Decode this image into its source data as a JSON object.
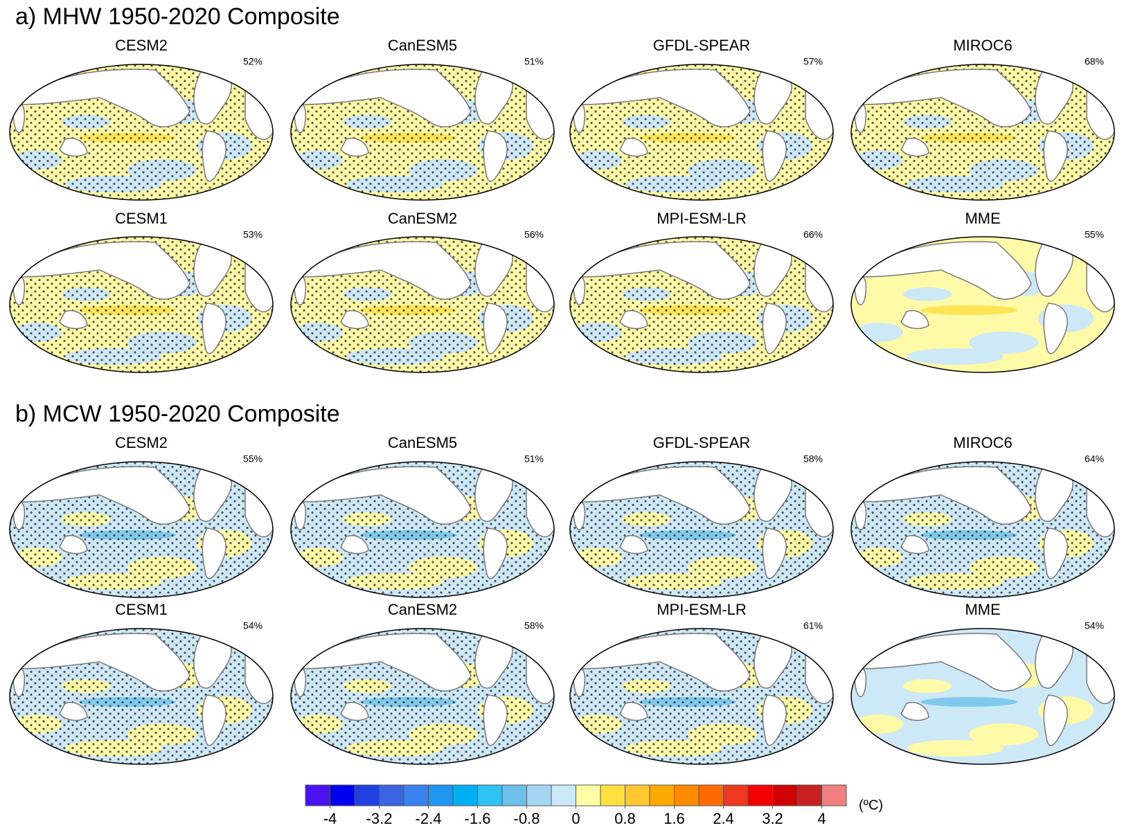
{
  "sections": [
    {
      "title": "a) MHW 1950-2020 Composite",
      "panels": [
        {
          "model": "CESM2",
          "percent": "52%"
        },
        {
          "model": "CanESM5",
          "percent": "51%"
        },
        {
          "model": "GFDL-SPEAR",
          "percent": "57%"
        },
        {
          "model": "MIROC6",
          "percent": "68%"
        },
        {
          "model": "CESM1",
          "percent": "53%"
        },
        {
          "model": "CanESM2",
          "percent": "56%"
        },
        {
          "model": "MPI-ESM-LR",
          "percent": "66%"
        },
        {
          "model": "MME",
          "percent": "55%"
        }
      ]
    },
    {
      "title": "b) MCW 1950-2020 Composite",
      "panels": [
        {
          "model": "CESM2",
          "percent": "55%"
        },
        {
          "model": "CanESM5",
          "percent": "51%"
        },
        {
          "model": "GFDL-SPEAR",
          "percent": "58%"
        },
        {
          "model": "MIROC6",
          "percent": "64%"
        },
        {
          "model": "CESM1",
          "percent": "54%"
        },
        {
          "model": "CanESM2",
          "percent": "58%"
        },
        {
          "model": "MPI-ESM-LR",
          "percent": "61%"
        },
        {
          "model": "MME",
          "percent": "54%"
        }
      ]
    }
  ],
  "colorbar": {
    "lim": [
      -4.4,
      4.4
    ],
    "colors": [
      "#4a12ee",
      "#0000f0",
      "#2040e0",
      "#3a64e0",
      "#3a82ee",
      "#2096f0",
      "#00b0f2",
      "#30c2f2",
      "#6cc0ea",
      "#a4d6f2",
      "#cae8f8",
      "#fffea4",
      "#ffe040",
      "#ffc830",
      "#ffaa00",
      "#ff8c00",
      "#ff6a00",
      "#f03820",
      "#f00000",
      "#d00000",
      "#c82020",
      "#f08080"
    ],
    "ticks": [
      -4,
      -3.2,
      -2.4,
      -1.6,
      -0.8,
      0,
      0.8,
      1.6,
      2.4,
      3.2,
      4
    ],
    "unit": "(ºC)"
  }
}
